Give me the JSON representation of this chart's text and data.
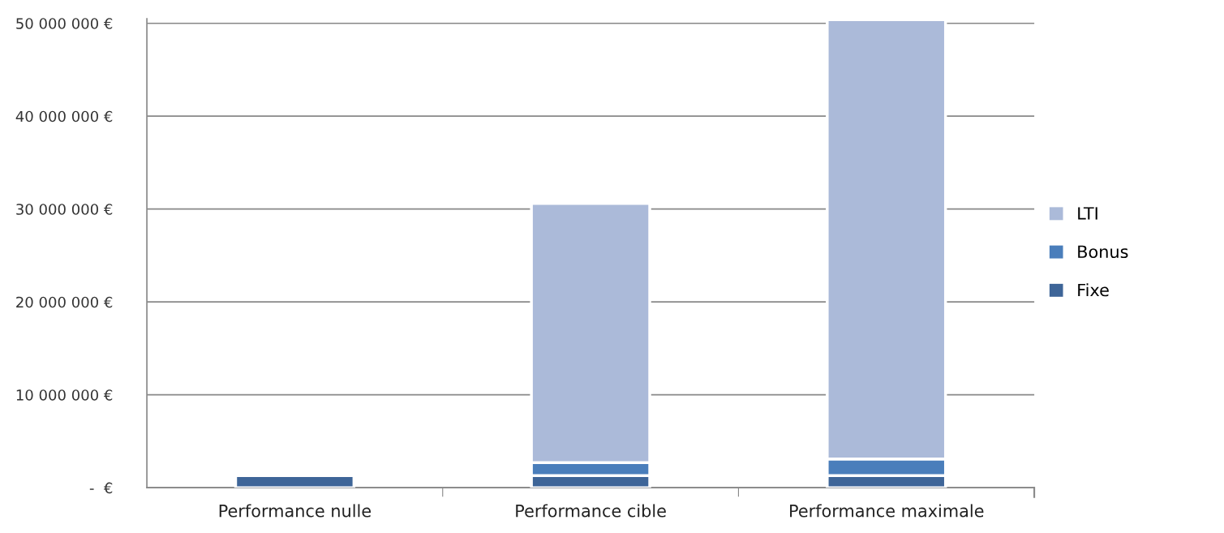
{
  "chart_data": {
    "type": "bar",
    "stacked": true,
    "categories": [
      "Performance nulle",
      "Performance cible",
      "Performance maximale"
    ],
    "series": [
      {
        "name": "Fixe",
        "color": "#3e6598",
        "values": [
          1300000,
          1300000,
          1300000
        ]
      },
      {
        "name": "Bonus",
        "color": "#4a7ebb",
        "values": [
          null,
          1400000,
          1800000
        ]
      },
      {
        "name": "LTI",
        "color": "#abbad9",
        "values": [
          null,
          27900000,
          47300000
        ]
      }
    ],
    "ylim": [
      0,
      50500000
    ],
    "yticks": [
      {
        "value": 0,
        "label": "-  €"
      },
      {
        "value": 10000000,
        "label": "10 000 000 €"
      },
      {
        "value": 20000000,
        "label": "20 000 000 €"
      },
      {
        "value": 30000000,
        "label": "30 000 000 €"
      },
      {
        "value": 40000000,
        "label": "40 000 000 €"
      },
      {
        "value": 50000000,
        "label": "50 000 000 €"
      }
    ],
    "grid": "y",
    "legend": "right"
  }
}
